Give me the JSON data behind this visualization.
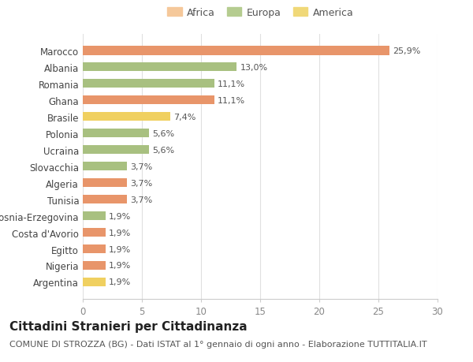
{
  "categories": [
    "Argentina",
    "Nigeria",
    "Egitto",
    "Costa d'Avorio",
    "Bosnia-Erzegovina",
    "Tunisia",
    "Algeria",
    "Slovacchia",
    "Ucraina",
    "Polonia",
    "Brasile",
    "Ghana",
    "Romania",
    "Albania",
    "Marocco"
  ],
  "values": [
    1.9,
    1.9,
    1.9,
    1.9,
    1.9,
    3.7,
    3.7,
    3.7,
    5.6,
    5.6,
    7.4,
    11.1,
    11.1,
    13.0,
    25.9
  ],
  "colors": [
    "#f0d060",
    "#e8956a",
    "#e8956a",
    "#e8956a",
    "#a8c080",
    "#e8956a",
    "#e8956a",
    "#a8c080",
    "#a8c080",
    "#a8c080",
    "#f0d060",
    "#e8956a",
    "#a8c080",
    "#a8c080",
    "#e8956a"
  ],
  "labels": [
    "1,9%",
    "1,9%",
    "1,9%",
    "1,9%",
    "1,9%",
    "3,7%",
    "3,7%",
    "3,7%",
    "5,6%",
    "5,6%",
    "7,4%",
    "11,1%",
    "11,1%",
    "13,0%",
    "25,9%"
  ],
  "legend": [
    {
      "label": "Africa",
      "color": "#f5c89a"
    },
    {
      "label": "Europa",
      "color": "#b5cc90"
    },
    {
      "label": "America",
      "color": "#f0d878"
    }
  ],
  "title": "Cittadini Stranieri per Cittadinanza",
  "subtitle": "COMUNE DI STROZZA (BG) - Dati ISTAT al 1° gennaio di ogni anno - Elaborazione TUTTITALIA.IT",
  "xlim": [
    0,
    30
  ],
  "xticks": [
    0,
    5,
    10,
    15,
    20,
    25,
    30
  ],
  "background_color": "#ffffff",
  "plot_background": "#ffffff",
  "bar_height": 0.55,
  "title_fontsize": 11,
  "subtitle_fontsize": 8,
  "label_fontsize": 8,
  "tick_fontsize": 8.5,
  "legend_fontsize": 9
}
